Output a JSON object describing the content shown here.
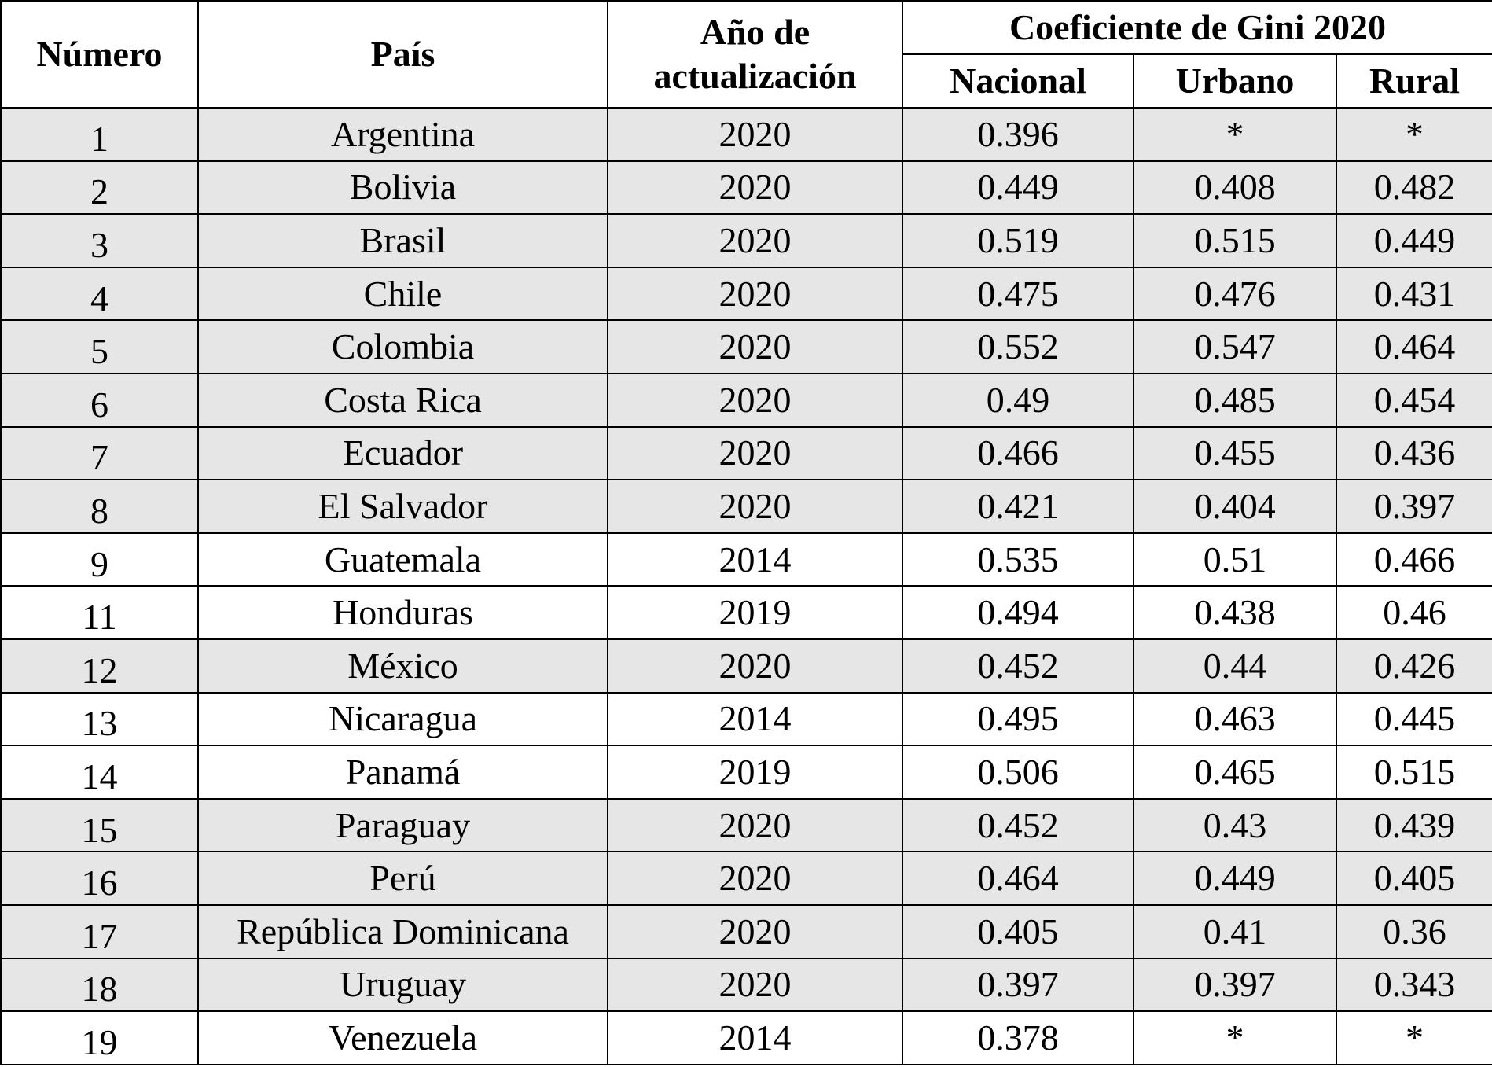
{
  "table": {
    "headers": {
      "numero": "Número",
      "pais": "País",
      "anio": "Año de actualización",
      "gini_group": "Coeficiente de Gini 2020",
      "nacional": "Nacional",
      "urbano": "Urbano",
      "rural": "Rural"
    },
    "rows": [
      {
        "numero": "1",
        "pais": "Argentina",
        "anio": "2020",
        "nacional": "0.396",
        "urbano": "*",
        "rural": "*",
        "shaded": true
      },
      {
        "numero": "2",
        "pais": "Bolivia",
        "anio": "2020",
        "nacional": "0.449",
        "urbano": "0.408",
        "rural": "0.482",
        "shaded": true
      },
      {
        "numero": "3",
        "pais": "Brasil",
        "anio": "2020",
        "nacional": "0.519",
        "urbano": "0.515",
        "rural": "0.449",
        "shaded": true
      },
      {
        "numero": "4",
        "pais": "Chile",
        "anio": "2020",
        "nacional": "0.475",
        "urbano": "0.476",
        "rural": "0.431",
        "shaded": true
      },
      {
        "numero": "5",
        "pais": "Colombia",
        "anio": "2020",
        "nacional": "0.552",
        "urbano": "0.547",
        "rural": "0.464",
        "shaded": true
      },
      {
        "numero": "6",
        "pais": "Costa Rica",
        "anio": "2020",
        "nacional": "0.49",
        "urbano": "0.485",
        "rural": "0.454",
        "shaded": true
      },
      {
        "numero": "7",
        "pais": "Ecuador",
        "anio": "2020",
        "nacional": "0.466",
        "urbano": "0.455",
        "rural": "0.436",
        "shaded": true
      },
      {
        "numero": "8",
        "pais": "El Salvador",
        "anio": "2020",
        "nacional": "0.421",
        "urbano": "0.404",
        "rural": "0.397",
        "shaded": true
      },
      {
        "numero": "9",
        "pais": "Guatemala",
        "anio": "2014",
        "nacional": "0.535",
        "urbano": "0.51",
        "rural": "0.466",
        "shaded": false
      },
      {
        "numero": "11",
        "pais": "Honduras",
        "anio": "2019",
        "nacional": "0.494",
        "urbano": "0.438",
        "rural": "0.46",
        "shaded": false
      },
      {
        "numero": "12",
        "pais": "México",
        "anio": "2020",
        "nacional": "0.452",
        "urbano": "0.44",
        "rural": "0.426",
        "shaded": true
      },
      {
        "numero": "13",
        "pais": "Nicaragua",
        "anio": "2014",
        "nacional": "0.495",
        "urbano": "0.463",
        "rural": "0.445",
        "shaded": false
      },
      {
        "numero": "14",
        "pais": "Panamá",
        "anio": "2019",
        "nacional": "0.506",
        "urbano": "0.465",
        "rural": "0.515",
        "shaded": false
      },
      {
        "numero": "15",
        "pais": "Paraguay",
        "anio": "2020",
        "nacional": "0.452",
        "urbano": "0.43",
        "rural": "0.439",
        "shaded": true
      },
      {
        "numero": "16",
        "pais": "Perú",
        "anio": "2020",
        "nacional": "0.464",
        "urbano": "0.449",
        "rural": "0.405",
        "shaded": true
      },
      {
        "numero": "17",
        "pais": "República Dominicana",
        "anio": "2020",
        "nacional": "0.405",
        "urbano": "0.41",
        "rural": "0.36",
        "shaded": true
      },
      {
        "numero": "18",
        "pais": "Uruguay",
        "anio": "2020",
        "nacional": "0.397",
        "urbano": "0.397",
        "rural": "0.343",
        "shaded": true
      },
      {
        "numero": "19",
        "pais": "Venezuela",
        "anio": "2014",
        "nacional": "0.378",
        "urbano": "*",
        "rural": "*",
        "shaded": false
      }
    ]
  },
  "colors": {
    "shaded_row": "#e6e6e6",
    "plain_row": "#ffffff",
    "border": "#000000"
  }
}
